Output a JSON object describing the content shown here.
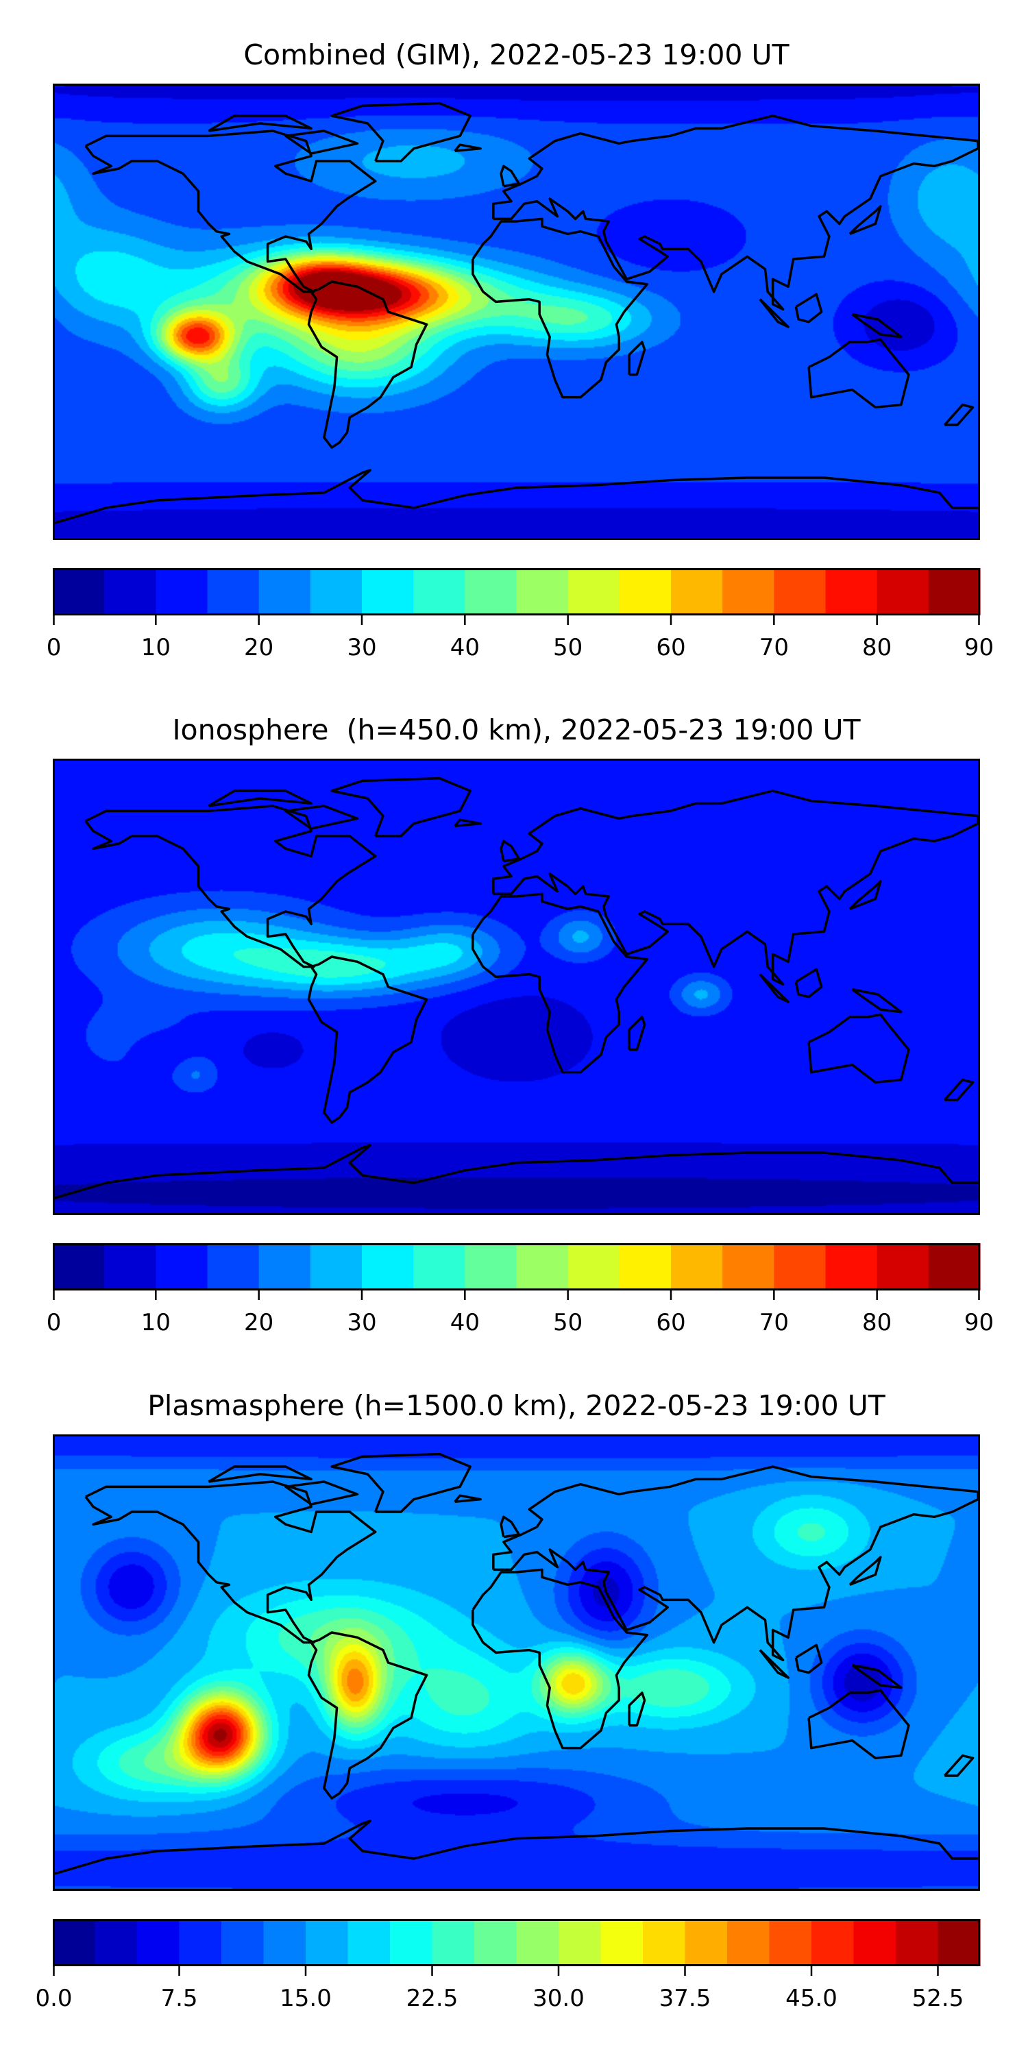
{
  "chart_data": [
    {
      "type": "heatmap",
      "title": "Combined (GIM), 2022-05-23 19:00 UT",
      "x_range": [
        -180,
        180
      ],
      "y_range": [
        -90,
        90
      ],
      "vmin": 0,
      "vmax": 90,
      "level_step": 5,
      "colormap": "jet",
      "colorbar_ticks": [
        "0",
        "10",
        "20",
        "30",
        "40",
        "50",
        "60",
        "70",
        "80",
        "90"
      ],
      "colorbar_tick_values": [
        0,
        10,
        20,
        30,
        40,
        50,
        60,
        70,
        80,
        90
      ],
      "field": {
        "base": 17,
        "blobs": [
          {
            "lon": -55,
            "lat": 8,
            "amp": 55,
            "sig_lon": 22,
            "sig_lat": 9
          },
          {
            "lon": -78,
            "lat": 12,
            "amp": 35,
            "sig_lon": 15,
            "sig_lat": 8
          },
          {
            "lon": -125,
            "lat": -10,
            "amp": 52,
            "sig_lon": 10,
            "sig_lat": 7
          },
          {
            "lon": -60,
            "lat": -15,
            "amp": 28,
            "sig_lon": 22,
            "sig_lat": 12
          },
          {
            "lon": -115,
            "lat": -28,
            "amp": 25,
            "sig_lon": 10,
            "sig_lat": 8
          },
          {
            "lon": -100,
            "lat": 5,
            "amp": 22,
            "sig_lon": 30,
            "sig_lat": 14
          },
          {
            "lon": -15,
            "lat": 5,
            "amp": 18,
            "sig_lon": 25,
            "sig_lat": 10
          },
          {
            "lon": 25,
            "lat": -3,
            "amp": 20,
            "sig_lon": 20,
            "sig_lat": 8
          },
          {
            "lon": -160,
            "lat": 15,
            "amp": 14,
            "sig_lon": 18,
            "sig_lat": 14
          },
          {
            "lon": -40,
            "lat": 60,
            "amp": 10,
            "sig_lon": 30,
            "sig_lat": 10
          },
          {
            "lon": 150,
            "lat": -5,
            "amp": -12,
            "sig_lon": 14,
            "sig_lat": 10
          },
          {
            "lon": 170,
            "lat": 45,
            "amp": 12,
            "sig_lon": 15,
            "sig_lat": 15
          },
          {
            "lon": 60,
            "lat": 30,
            "amp": -6,
            "sig_lon": 20,
            "sig_lat": 10
          },
          {
            "lon": 0,
            "lat": -85,
            "amp": -9,
            "sig_lon": 400,
            "sig_lat": 10
          },
          {
            "lon": 0,
            "lat": 88,
            "amp": -8,
            "sig_lon": 400,
            "sig_lat": 8
          }
        ]
      }
    },
    {
      "type": "heatmap",
      "title": "Ionosphere  (h=450.0 km), 2022-05-23 19:00 UT",
      "x_range": [
        -180,
        180
      ],
      "y_range": [
        -90,
        90
      ],
      "vmin": 0,
      "vmax": 90,
      "level_step": 5,
      "colormap": "jet",
      "colorbar_ticks": [
        "0",
        "10",
        "20",
        "30",
        "40",
        "50",
        "60",
        "70",
        "80",
        "90"
      ],
      "colorbar_tick_values": [
        0,
        10,
        20,
        30,
        40,
        50,
        60,
        70,
        80,
        90
      ],
      "field": {
        "base": 12,
        "blobs": [
          {
            "lon": -115,
            "lat": 15,
            "amp": 20,
            "sig_lon": 30,
            "sig_lat": 12
          },
          {
            "lon": -65,
            "lat": 8,
            "amp": 22,
            "sig_lon": 25,
            "sig_lat": 8
          },
          {
            "lon": -25,
            "lat": 15,
            "amp": 15,
            "sig_lon": 15,
            "sig_lat": 8
          },
          {
            "lon": 25,
            "lat": 20,
            "amp": 14,
            "sig_lon": 8,
            "sig_lat": 6
          },
          {
            "lon": 72,
            "lat": -3,
            "amp": 14,
            "sig_lon": 7,
            "sig_lat": 5
          },
          {
            "lon": -150,
            "lat": -20,
            "amp": 6,
            "sig_lon": 15,
            "sig_lat": 10
          },
          {
            "lon": -125,
            "lat": -35,
            "amp": 8,
            "sig_lon": 6,
            "sig_lat": 5
          },
          {
            "lon": -140,
            "lat": -25,
            "amp": -6,
            "sig_lon": 8,
            "sig_lat": 5
          },
          {
            "lon": -95,
            "lat": -25,
            "amp": -6,
            "sig_lon": 8,
            "sig_lat": 5
          },
          {
            "lon": 0,
            "lat": -20,
            "amp": -6,
            "sig_lon": 20,
            "sig_lat": 12
          },
          {
            "lon": 0,
            "lat": -82,
            "amp": -8,
            "sig_lon": 400,
            "sig_lat": 12
          }
        ]
      }
    },
    {
      "type": "heatmap",
      "title": "Plasmasphere (h=1500.0 km), 2022-05-23 19:00 UT",
      "x_range": [
        -180,
        180
      ],
      "y_range": [
        -90,
        90
      ],
      "vmin": 0,
      "vmax": 55,
      "level_step": 2.5,
      "colormap": "jet",
      "colorbar_ticks": [
        "0.0",
        "7.5",
        "15.0",
        "22.5",
        "30.0",
        "37.5",
        "45.0",
        "52.5"
      ],
      "colorbar_tick_values": [
        0,
        7.5,
        15,
        22.5,
        30,
        37.5,
        45,
        52.5
      ],
      "field": {
        "base": 15,
        "blobs": [
          {
            "lon": -115,
            "lat": -28,
            "amp": 36,
            "sig_lon": 11,
            "sig_lat": 11
          },
          {
            "lon": -63,
            "lat": -10,
            "amp": 22,
            "sig_lon": 8,
            "sig_lat": 12
          },
          {
            "lon": 22,
            "lat": -8,
            "amp": 20,
            "sig_lon": 9,
            "sig_lat": 9
          },
          {
            "lon": -70,
            "lat": 10,
            "amp": 10,
            "sig_lon": 30,
            "sig_lat": 14
          },
          {
            "lon": -20,
            "lat": -15,
            "amp": 8,
            "sig_lon": 20,
            "sig_lat": 14
          },
          {
            "lon": 60,
            "lat": -10,
            "amp": 10,
            "sig_lon": 20,
            "sig_lat": 10
          },
          {
            "lon": -140,
            "lat": -40,
            "amp": 10,
            "sig_lon": 20,
            "sig_lat": 10
          },
          {
            "lon": -150,
            "lat": 30,
            "amp": -10,
            "sig_lon": 12,
            "sig_lat": 12
          },
          {
            "lon": 35,
            "lat": 28,
            "amp": -11,
            "sig_lon": 12,
            "sig_lat": 14
          },
          {
            "lon": 135,
            "lat": -8,
            "amp": -12,
            "sig_lon": 12,
            "sig_lat": 12
          },
          {
            "lon": -20,
            "lat": -55,
            "amp": -8,
            "sig_lon": 50,
            "sig_lat": 10
          },
          {
            "lon": 115,
            "lat": 52,
            "amp": 8,
            "sig_lon": 15,
            "sig_lat": 10
          },
          {
            "lon": 0,
            "lat": -82,
            "amp": -7,
            "sig_lon": 400,
            "sig_lat": 10
          },
          {
            "lon": 0,
            "lat": 88,
            "amp": -7,
            "sig_lon": 400,
            "sig_lat": 8
          }
        ]
      }
    }
  ]
}
